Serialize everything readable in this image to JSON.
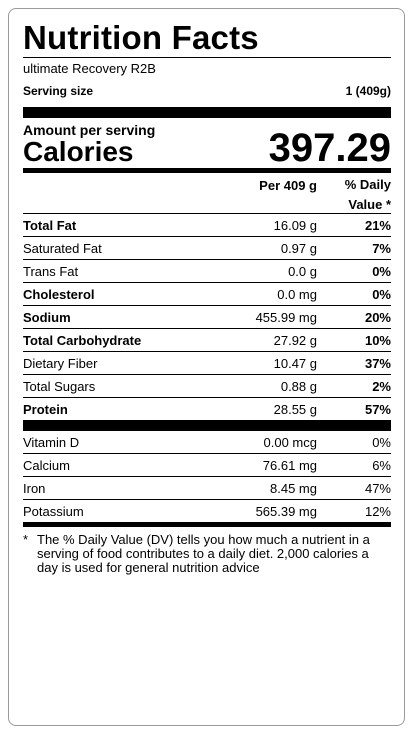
{
  "label": {
    "title": "Nutrition Facts",
    "product": "ultimate Recovery R2B",
    "serving_size_label": "Serving size",
    "serving_size_value": "1 (409g)",
    "amount_per_serving": "Amount per serving",
    "calories_label": "Calories",
    "calories_value": "397.29",
    "col_per": "Per 409 g",
    "col_dv_line1": "% Daily",
    "col_dv_line2": "Value *",
    "nutrients": [
      {
        "name": "Total Fat",
        "amount": "16.09 g",
        "dv": "21%"
      },
      {
        "name": "Saturated Fat",
        "amount": "0.97 g",
        "dv": "7%"
      },
      {
        "name": "Trans Fat",
        "amount": "0.0 g",
        "dv": "0%"
      },
      {
        "name": "Cholesterol",
        "amount": "0.0 mg",
        "dv": "0%"
      },
      {
        "name": "Sodium",
        "amount": "455.99 mg",
        "dv": "20%"
      },
      {
        "name": "Total Carbohydrate",
        "amount": "27.92 g",
        "dv": "10%"
      },
      {
        "name": "Dietary Fiber",
        "amount": "10.47 g",
        "dv": "37%"
      },
      {
        "name": "Total Sugars",
        "amount": "0.88 g",
        "dv": "2%"
      },
      {
        "name": "Protein",
        "amount": "28.55 g",
        "dv": "57%"
      }
    ],
    "vitamins": [
      {
        "name": "Vitamin D",
        "amount": "0.00 mcg",
        "dv": "0%"
      },
      {
        "name": "Calcium",
        "amount": "76.61 mg",
        "dv": "6%"
      },
      {
        "name": "Iron",
        "amount": "8.45 mg",
        "dv": "47%"
      },
      {
        "name": "Potassium",
        "amount": "565.39 mg",
        "dv": "12%"
      }
    ],
    "footnote_star": "*",
    "footnote": "The % Daily Value (DV) tells you how much a nutrient in a serving of food contributes to a daily diet. 2,000 calories a day is used for general nutrition advice"
  }
}
